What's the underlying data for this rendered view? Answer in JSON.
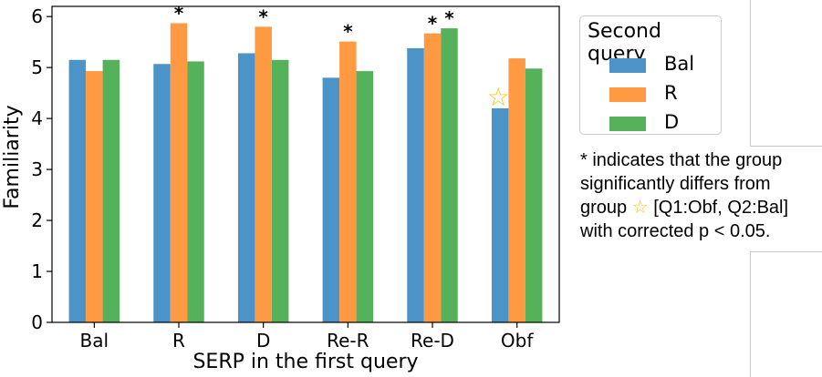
{
  "chart_data": {
    "type": "bar",
    "xlabel": "SERP in the first query",
    "ylabel": "Familiarity",
    "ylim": [
      0,
      6.2
    ],
    "yticks": [
      "0",
      "1",
      "2",
      "3",
      "4",
      "5",
      "6"
    ],
    "categories": [
      "Bal",
      "R",
      "D",
      "Re-R",
      "Re-D",
      "Obf"
    ],
    "series": [
      {
        "name": "Bal",
        "color": "#4c93c7",
        "values": [
          5.15,
          5.07,
          5.28,
          4.8,
          5.38,
          4.2
        ]
      },
      {
        "name": "R",
        "color": "#ff9a43",
        "values": [
          4.93,
          5.87,
          5.8,
          5.51,
          5.67,
          5.18
        ]
      },
      {
        "name": "D",
        "color": "#55b25a",
        "values": [
          5.15,
          5.12,
          5.15,
          4.93,
          5.77,
          4.98
        ]
      }
    ],
    "significance_marks": [
      {
        "category": "R",
        "series": "R",
        "text": "*"
      },
      {
        "category": "D",
        "series": "R",
        "text": "*"
      },
      {
        "category": "Re-R",
        "series": "R",
        "text": "*"
      },
      {
        "category": "Re-D",
        "series": "R",
        "text": "*"
      },
      {
        "category": "Re-D",
        "series": "D",
        "text": "*"
      }
    ],
    "reference_mark": {
      "category": "Obf",
      "series": "Bal",
      "symbol": "☆",
      "color": "#f5c518"
    },
    "legend": {
      "title": "Second query",
      "placement": "outside-right"
    }
  },
  "note": {
    "line1": "* indicates that the group",
    "line2": "significantly differs from",
    "line3_pre": "group ",
    "star": "☆",
    "line3_post": " [Q1:Obf, Q2:Bal]",
    "line4": "with corrected p < 0.05."
  }
}
